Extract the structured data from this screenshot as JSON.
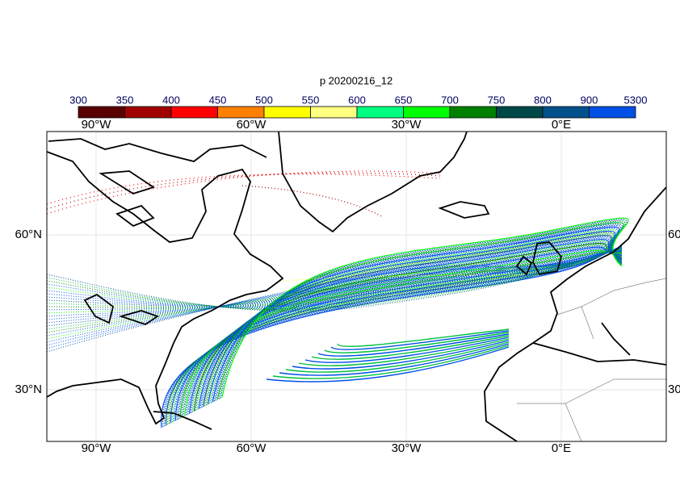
{
  "title": "p 20200216_12",
  "colorbar": {
    "ticks": [
      300,
      350,
      400,
      450,
      500,
      550,
      600,
      650,
      700,
      750,
      800,
      900,
      5300
    ],
    "colors": [
      "#5a0000",
      "#a00000",
      "#ff0000",
      "#ff8000",
      "#ffff00",
      "#ffff80",
      "#00ff80",
      "#00ff00",
      "#008000",
      "#004848",
      "#00508c",
      "#0050e6"
    ]
  },
  "lon_labels": [
    "90°W",
    "60°W",
    "30°W",
    "0°E"
  ],
  "lat_labels": [
    "60°N",
    "30°N"
  ]
}
